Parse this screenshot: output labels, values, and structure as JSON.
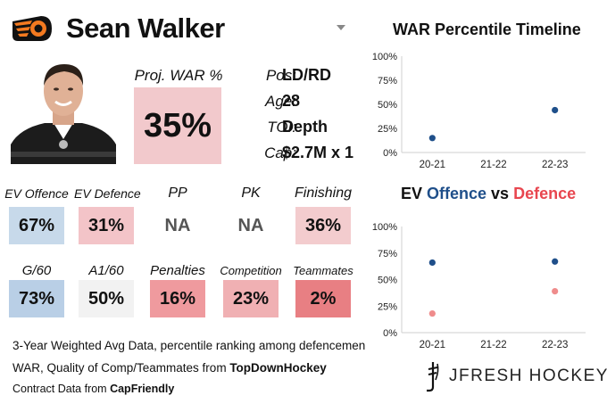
{
  "player": {
    "name": "Sean Walker"
  },
  "proj_war": {
    "label": "Proj. WAR %",
    "value": "35%",
    "color": "#f2c9cc"
  },
  "info": [
    {
      "label": "Pos:",
      "value": "LD/RD"
    },
    {
      "label": "Age:",
      "value": "28"
    },
    {
      "label": "TOI:",
      "value": "Depth"
    },
    {
      "label": "Cap:",
      "value": "$2.7M x 1"
    }
  ],
  "stats_row1": [
    {
      "label": "EV Offence",
      "value": "67%",
      "color": "#c7d9ea"
    },
    {
      "label": "EV Defence",
      "value": "31%",
      "color": "#f3c4c8"
    },
    {
      "label": "PP",
      "value": "NA",
      "color": "#ffffff"
    },
    {
      "label": "PK",
      "value": "NA",
      "color": "#ffffff"
    },
    {
      "label": "Finishing",
      "value": "36%",
      "color": "#f3ccce"
    }
  ],
  "stats_row2": [
    {
      "label": "G/60",
      "value": "73%",
      "color": "#b9cfe6"
    },
    {
      "label": "A1/60",
      "value": "50%",
      "color": "#f2f2f2"
    },
    {
      "label": "Penalties",
      "value": "16%",
      "color": "#ef9a9e"
    },
    {
      "label": "Competition",
      "value": "23%",
      "color": "#f0b0b3"
    },
    {
      "label": "Teammates",
      "value": "2%",
      "color": "#e87f83"
    }
  ],
  "footer": {
    "line1": "3-Year Weighted Avg Data, percentile ranking among defencemen",
    "line2_prefix": "WAR, Quality of Comp/Teammates from ",
    "line2_source": "TopDownHockey",
    "line3_prefix": "Contract Data from ",
    "line3_source": "CapFriendly"
  },
  "brand": "JFRESH HOCKEY",
  "colors": {
    "offence": "#1f4f8a",
    "defence": "#e8464f",
    "war_point": "#1f4f8a",
    "defence_point": "#ef8c8c"
  },
  "chart_data": [
    {
      "type": "scatter",
      "title": "WAR Percentile Timeline",
      "categories": [
        "20-21",
        "21-22",
        "22-23"
      ],
      "series": [
        {
          "values": [
            15,
            null,
            44
          ]
        }
      ],
      "ylim": [
        0,
        100
      ],
      "yticks": [
        "0%",
        "25%",
        "50%",
        "75%",
        "100%"
      ],
      "grid": false
    },
    {
      "type": "scatter",
      "title_parts": {
        "ev": "EV ",
        "offence": "Offence",
        "vs": " vs ",
        "defence": "Defence"
      },
      "categories": [
        "20-21",
        "21-22",
        "22-23"
      ],
      "series": [
        {
          "name": "Offence",
          "values": [
            66,
            null,
            67
          ]
        },
        {
          "name": "Defence",
          "values": [
            18,
            null,
            39
          ]
        }
      ],
      "ylim": [
        0,
        100
      ],
      "yticks": [
        "0%",
        "25%",
        "50%",
        "75%",
        "100%"
      ],
      "grid": false
    }
  ]
}
